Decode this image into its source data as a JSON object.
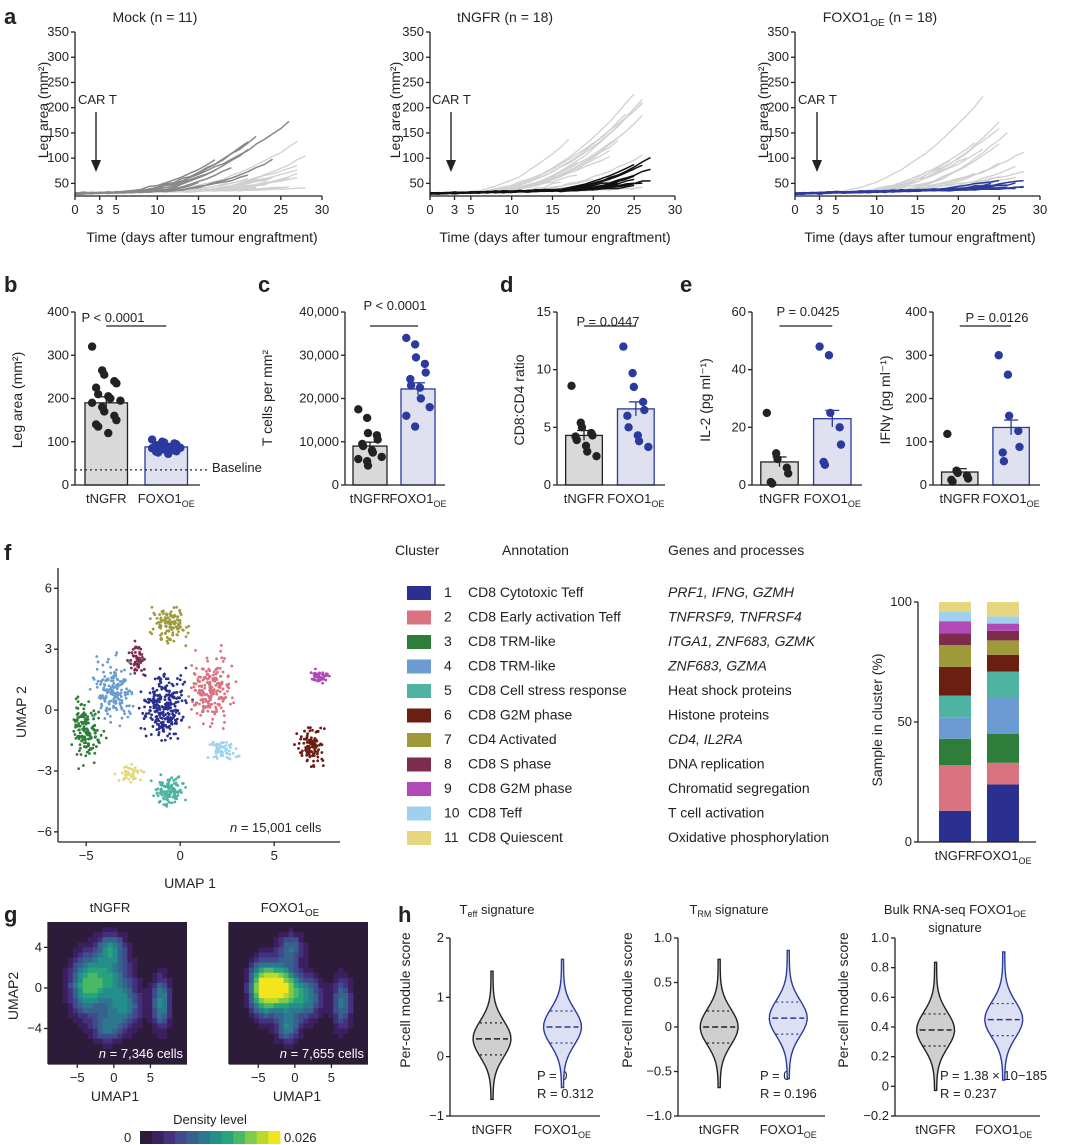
{
  "panel_labels": [
    "a",
    "b",
    "c",
    "d",
    "e",
    "f",
    "g",
    "h"
  ],
  "colors": {
    "grey_line": "#d0d0d0",
    "dark_grey": "#888888",
    "black": "#111111",
    "blue": "#2a3a9e",
    "bar_grey": "#d9d9d9",
    "bar_blue": "#dfe1f0",
    "violin_grey": "#cfcfcf",
    "violin_blue": "#dde0f2"
  },
  "chart_data": [
    {
      "type": "line",
      "panel": "a",
      "title": "Mock (n = 11)",
      "xlabel": "Time (days after tumour engraftment)",
      "ylabel": "Leg area (mm²)",
      "xticks": [
        "0",
        "3",
        "5",
        "10",
        "15",
        "20",
        "25",
        "30"
      ],
      "xtick_values": [
        0,
        3,
        5,
        10,
        15,
        20,
        25,
        30
      ],
      "yticks": [
        "50",
        "100",
        "150",
        "200",
        "250",
        "300",
        "350"
      ],
      "ytick_values": [
        50,
        100,
        150,
        200,
        250,
        300,
        350
      ],
      "xlim": [
        0,
        30
      ],
      "ylim": [
        25,
        350
      ],
      "annotation": "CAR T",
      "highlight": "Mock"
    },
    {
      "type": "line",
      "panel": "a",
      "title": "tNGFR (n = 18)",
      "xlabel": "Time (days after tumour engraftment)",
      "ylabel": "Leg area (mm²)",
      "xticks": [
        "0",
        "3",
        "5",
        "10",
        "15",
        "20",
        "25",
        "30"
      ],
      "xtick_values": [
        0,
        3,
        5,
        10,
        15,
        20,
        25,
        30
      ],
      "yticks": [
        "50",
        "100",
        "150",
        "200",
        "250",
        "300",
        "350"
      ],
      "ytick_values": [
        50,
        100,
        150,
        200,
        250,
        300,
        350
      ],
      "xlim": [
        0,
        30
      ],
      "ylim": [
        25,
        350
      ],
      "annotation": "CAR T",
      "highlight": "tNGFR"
    },
    {
      "type": "line",
      "panel": "a",
      "title": "FOXO1OE (n = 18)",
      "xlabel": "Time (days after tumour engraftment)",
      "ylabel": "Leg area (mm²)",
      "xticks": [
        "0",
        "3",
        "5",
        "10",
        "15",
        "20",
        "25",
        "30"
      ],
      "xtick_values": [
        0,
        3,
        5,
        10,
        15,
        20,
        25,
        30
      ],
      "yticks": [
        "50",
        "100",
        "150",
        "200",
        "250",
        "300",
        "350"
      ],
      "ytick_values": [
        50,
        100,
        150,
        200,
        250,
        300,
        350
      ],
      "xlim": [
        0,
        30
      ],
      "ylim": [
        25,
        350
      ],
      "annotation": "CAR T",
      "highlight": "FOXO1OE"
    },
    {
      "type": "bar",
      "panel": "b",
      "categories": [
        "tNGFR",
        "FOXO1OE"
      ],
      "values": [
        190,
        88
      ],
      "ylabel": "Leg area (mm²)",
      "ylim": [
        0,
        400
      ],
      "yticks": [
        "0",
        "100",
        "200",
        "300",
        "400"
      ],
      "pvalue": "P < 0.0001",
      "baseline_label": "Baseline",
      "baseline_value": 35,
      "points": [
        [
          320,
          265,
          255,
          240,
          235,
          225,
          210,
          205,
          200,
          195,
          190,
          180,
          170,
          160,
          150,
          140,
          135,
          120
        ],
        [
          105,
          100,
          98,
          96,
          94,
          92,
          90,
          88,
          87,
          86,
          85,
          84,
          82,
          80,
          78,
          77,
          75,
          72
        ]
      ]
    },
    {
      "type": "bar",
      "panel": "c",
      "categories": [
        "tNGFR",
        "FOXO1OE"
      ],
      "values": [
        9000,
        22200
      ],
      "ylabel": "T cells per mm²",
      "ylim": [
        0,
        40000
      ],
      "yticks": [
        "0",
        "10,000",
        "20,000",
        "30,000",
        "40,000"
      ],
      "pvalue": "P < 0.0001",
      "points": [
        [
          17500,
          15500,
          12000,
          11500,
          10500,
          9500,
          9000,
          8000,
          7500,
          6500,
          6000,
          5500,
          4500
        ],
        [
          34000,
          32500,
          29500,
          28000,
          26000,
          24500,
          23000,
          22500,
          20000,
          18000,
          16000,
          13500
        ]
      ]
    },
    {
      "type": "bar",
      "panel": "d",
      "categories": [
        "tNGFR",
        "FOXO1OE"
      ],
      "values": [
        4.3,
        6.6
      ],
      "ylabel": "CD8:CD4 ratio",
      "ylim": [
        0,
        15
      ],
      "yticks": [
        "0",
        "5",
        "10",
        "15"
      ],
      "pvalue": "P = 0.0447",
      "points": [
        [
          8.6,
          5.4,
          5.0,
          4.5,
          4.3,
          4.2,
          3.9,
          3.4,
          2.9,
          2.5
        ],
        [
          12.0,
          9.7,
          8.5,
          7.2,
          6.5,
          6.0,
          5.0,
          4.3,
          3.8,
          3.3
        ]
      ]
    },
    {
      "type": "bar",
      "panel": "e",
      "categories": [
        "tNGFR",
        "FOXO1OE"
      ],
      "values": [
        8,
        23
      ],
      "ylabel": "IL-2 (pg ml⁻¹)",
      "ylim": [
        0,
        60
      ],
      "yticks": [
        "0",
        "20",
        "40",
        "60"
      ],
      "pvalue": "P = 0.0425",
      "points": [
        [
          25,
          11,
          9,
          6,
          4,
          1,
          0.5
        ],
        [
          48,
          45,
          25,
          20,
          14,
          8,
          7
        ]
      ]
    },
    {
      "type": "bar",
      "panel": "e",
      "categories": [
        "tNGFR",
        "FOXO1OE"
      ],
      "values": [
        30,
        133
      ],
      "ylabel": "IFNγ (pg ml⁻¹)",
      "ylim": [
        0,
        400
      ],
      "yticks": [
        "0",
        "100",
        "200",
        "300",
        "400"
      ],
      "pvalue": "P = 0.0126",
      "points": [
        [
          118,
          33,
          28,
          22,
          15,
          12,
          8
        ],
        [
          300,
          255,
          160,
          125,
          88,
          75,
          55
        ]
      ]
    },
    {
      "type": "scatter",
      "panel": "f",
      "xlabel": "UMAP 1",
      "ylabel": "UMAP 2",
      "xticks": [
        "−5",
        "0",
        "5"
      ],
      "xtick_values": [
        -5,
        0,
        5
      ],
      "yticks": [
        "−6",
        "−3",
        "0",
        "3",
        "6"
      ],
      "ytick_values": [
        -6,
        -3,
        0,
        3,
        6
      ],
      "annotation": "n = 15,001 cells"
    },
    {
      "type": "bar",
      "panel": "f",
      "stacked": true,
      "categories": [
        "tNGFR",
        "FOXO1OE"
      ],
      "ylabel": "Sample in cluster (%)",
      "yticks": [
        "0",
        "50",
        "100"
      ],
      "ylim": [
        0,
        100
      ],
      "series": [
        {
          "name": "1",
          "values": [
            13,
            24
          ]
        },
        {
          "name": "2",
          "values": [
            19,
            9
          ]
        },
        {
          "name": "3",
          "values": [
            11,
            12
          ]
        },
        {
          "name": "4",
          "values": [
            9,
            15
          ]
        },
        {
          "name": "5",
          "values": [
            9,
            11
          ]
        },
        {
          "name": "6",
          "values": [
            12,
            7
          ]
        },
        {
          "name": "7",
          "values": [
            9,
            6
          ]
        },
        {
          "name": "8",
          "values": [
            5,
            4
          ]
        },
        {
          "name": "9",
          "values": [
            5,
            3
          ]
        },
        {
          "name": "10",
          "values": [
            4,
            3
          ]
        },
        {
          "name": "11",
          "values": [
            4,
            6
          ]
        }
      ]
    },
    {
      "type": "heatmap",
      "panel": "g",
      "title": "tNGFR",
      "xlabel": "UMAP1",
      "ylabel": "UMAP2",
      "xticks": [
        "−5",
        "0",
        "5"
      ],
      "yticks": [
        "4",
        "0",
        "−4"
      ],
      "annotation": "n = 7,346 cells"
    },
    {
      "type": "heatmap",
      "panel": "g",
      "title": "FOXO1OE",
      "xlabel": "UMAP1",
      "ylabel": "UMAP2",
      "xticks": [
        "−5",
        "0",
        "5"
      ],
      "yticks": [
        "4",
        "0",
        "−4"
      ],
      "annotation": "n = 7,655 cells",
      "colorbar": {
        "label": "Density level",
        "min": "0",
        "max": "0.026"
      }
    },
    {
      "type": "violin",
      "panel": "h",
      "title": "Teff signature",
      "categories": [
        "tNGFR",
        "FOXO1OE"
      ],
      "ylabel": "Per-cell module score",
      "ylim": [
        -1,
        2
      ],
      "yticks": [
        "−1",
        "0",
        "1",
        "2"
      ],
      "medians": [
        0.3,
        0.5
      ],
      "stats": [
        "P = 0",
        "R = 0.312"
      ]
    },
    {
      "type": "violin",
      "panel": "h",
      "title": "TRM signature",
      "categories": [
        "tNGFR",
        "FOXO1OE"
      ],
      "ylabel": "Per-cell module score",
      "ylim": [
        -1,
        1
      ],
      "yticks": [
        "−1.0",
        "−0.5",
        "0",
        "0.5",
        "1.0"
      ],
      "medians": [
        0,
        0.1
      ],
      "stats": [
        "P = 0",
        "R = 0.196"
      ]
    },
    {
      "type": "violin",
      "panel": "h",
      "title": "Bulk RNA-seq FOXO1OE signature",
      "categories": [
        "tNGFR",
        "FOXO1OE"
      ],
      "ylabel": "Per-cell module score",
      "ylim": [
        -0.2,
        1
      ],
      "yticks": [
        "−0.2",
        "0",
        "0.2",
        "0.4",
        "0.6",
        "0.8",
        "1.0"
      ],
      "medians": [
        0.38,
        0.45
      ],
      "stats": [
        "P = 1.38 × 10−185",
        "R = 0.237"
      ]
    }
  ],
  "cluster_table": {
    "headers": [
      "Cluster",
      "Annotation",
      "Genes and processes"
    ],
    "rows": [
      {
        "num": "1",
        "annotation": "CD8 Cytotoxic Teff",
        "genes": "PRF1, IFNG, GZMH",
        "color": "#2b2f8f"
      },
      {
        "num": "2",
        "annotation": "CD8 Early activation Teff",
        "genes": "TNFRSF9, TNFRSF4",
        "color": "#d9737f"
      },
      {
        "num": "3",
        "annotation": "CD8 TRM-like",
        "genes": "ITGA1, ZNF683, GZMK",
        "color": "#2f7d3a"
      },
      {
        "num": "4",
        "annotation": "CD8 TRM-like",
        "genes": "ZNF683, GZMA",
        "color": "#6b9bd2"
      },
      {
        "num": "5",
        "annotation": "CD8 Cell stress response",
        "genes": "Heat shock proteins",
        "color": "#4fb3a1"
      },
      {
        "num": "6",
        "annotation": "CD8 G2M phase",
        "genes": "Histone proteins",
        "color": "#6b1e12"
      },
      {
        "num": "7",
        "annotation": "CD4 Activated",
        "genes": "CD4, IL2RA",
        "color": "#9e9a3a"
      },
      {
        "num": "8",
        "annotation": "CD8 S phase",
        "genes": "DNA replication",
        "color": "#7d2c4d"
      },
      {
        "num": "9",
        "annotation": "CD8 G2M phase",
        "genes": "Chromatid segregation",
        "color": "#b249b8"
      },
      {
        "num": "10",
        "annotation": "CD8 Teff",
        "genes": "T cell activation",
        "color": "#9fd1ee"
      },
      {
        "num": "11",
        "annotation": "CD8 Quiescent",
        "genes": "Oxidative phosphorylation",
        "color": "#e6d77e"
      }
    ]
  }
}
